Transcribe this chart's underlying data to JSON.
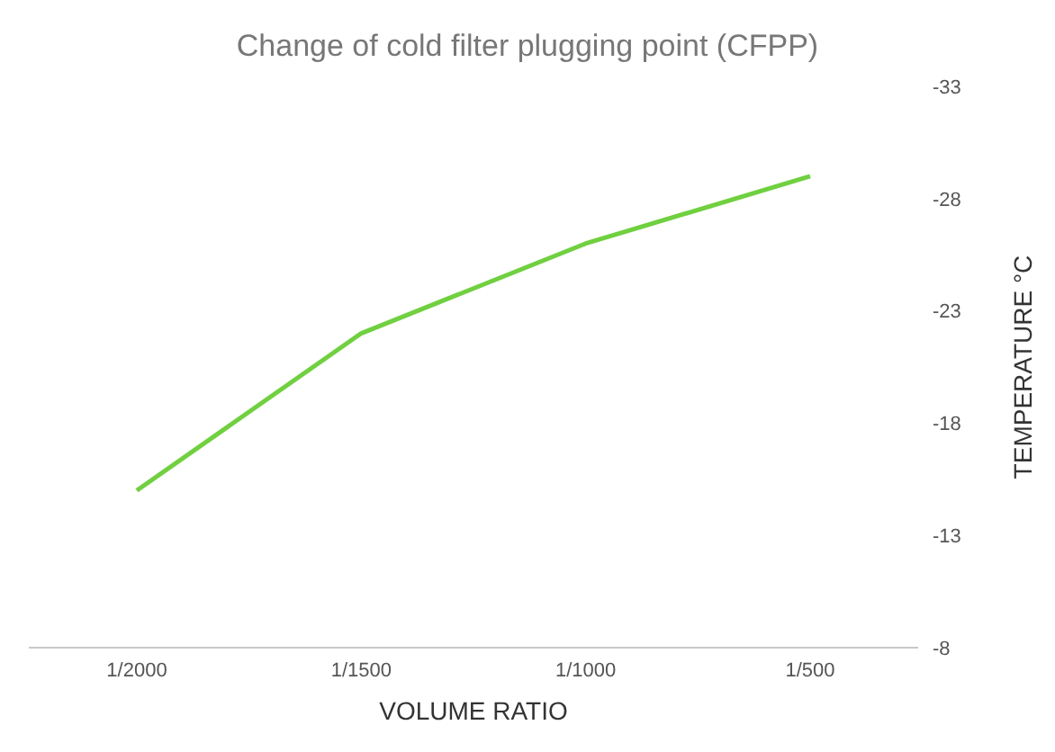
{
  "chart_data": {
    "type": "line",
    "title": "Change of cold filter plugging point (CFPP)",
    "xlabel": "VOLUME RATIO",
    "ylabel": "TEMPERATURE °C",
    "categories": [
      "1/2000",
      "1/1500",
      "1/1000",
      "1/500"
    ],
    "series": [
      {
        "color": "#70d040",
        "values": [
          -15,
          -22,
          -26,
          -29
        ]
      }
    ],
    "ylim": [
      -8,
      -33
    ],
    "yticks": [
      -33,
      -28,
      -23,
      -18,
      -13,
      -8
    ],
    "marker": "none",
    "line_style": "solid"
  }
}
